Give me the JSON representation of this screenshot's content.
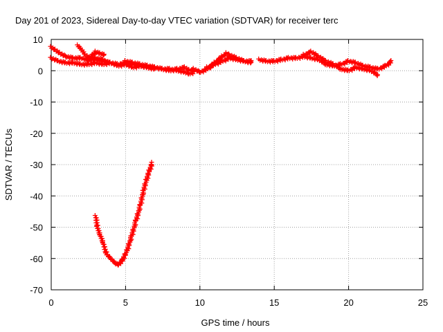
{
  "chart_data": {
    "type": "scatter",
    "title": "Day 201 of 2023, Sidereal Day-to-day VTEC variation (SDTVAR) for receiver terc",
    "xlabel": "GPS time / hours",
    "ylabel": "SDTVAR / TECUs",
    "xlim": [
      0,
      25
    ],
    "ylim": [
      -70,
      10
    ],
    "xticks": [
      0,
      5,
      10,
      15,
      20,
      25
    ],
    "yticks": [
      10,
      0,
      -10,
      -20,
      -30,
      -40,
      -50,
      -60,
      -70
    ],
    "grid": true,
    "marker": "+",
    "colors": {
      "series": "#ff0000",
      "grid": "#a0a0a0",
      "axis": "#000000"
    },
    "series": [
      {
        "name": "SDTVAR",
        "segments": [
          {
            "x": [
              0.0,
              0.3,
              0.6,
              1.0,
              1.5,
              2.0,
              2.5,
              3.0,
              3.5,
              3.8
            ],
            "y": [
              7.5,
              6.5,
              5.5,
              4.5,
              4.0,
              4.0,
              3.5,
              4.0,
              3.5,
              2.5
            ]
          },
          {
            "x": [
              0.0,
              0.5,
              1.0,
              1.5,
              2.0,
              2.5,
              3.0,
              3.5,
              4.0,
              4.5,
              5.0,
              5.5,
              6.0,
              6.5,
              7.0
            ],
            "y": [
              4.0,
              3.0,
              2.5,
              2.5,
              2.0,
              2.0,
              2.5,
              2.0,
              2.5,
              1.5,
              2.0,
              1.0,
              1.5,
              1.0,
              0.5
            ]
          },
          {
            "x": [
              1.8,
              2.0,
              2.3,
              2.6,
              3.0,
              3.5,
              4.0,
              4.5,
              5.0,
              5.5,
              6.0,
              6.5,
              7.0
            ],
            "y": [
              8.0,
              7.0,
              5.0,
              4.0,
              3.5,
              3.0,
              2.5,
              2.0,
              2.5,
              2.0,
              1.5,
              1.0,
              0.5
            ]
          },
          {
            "x": [
              2.5,
              2.8,
              3.0,
              3.3,
              3.6
            ],
            "y": [
              3.0,
              5.0,
              6.0,
              5.5,
              5.0
            ]
          },
          {
            "x": [
              5.0,
              5.5,
              6.0,
              6.5,
              7.0,
              7.5,
              8.0,
              8.5,
              9.0,
              9.3,
              9.6,
              10.0
            ],
            "y": [
              3.0,
              2.5,
              2.0,
              1.5,
              1.0,
              0.5,
              0.0,
              0.5,
              1.0,
              0.0,
              0.5,
              -0.5
            ]
          },
          {
            "x": [
              6.5,
              7.0,
              7.5,
              8.0,
              8.5,
              9.0,
              9.3,
              9.6
            ],
            "y": [
              1.5,
              1.0,
              0.5,
              0.5,
              0.0,
              -0.5,
              -1.0,
              -0.5
            ]
          },
          {
            "x": [
              10.0,
              10.5,
              11.0,
              11.5,
              11.8,
              12.0,
              12.5,
              13.0,
              13.5
            ],
            "y": [
              -0.5,
              0.5,
              2.5,
              4.5,
              5.5,
              5.0,
              4.0,
              3.0,
              3.0
            ]
          },
          {
            "x": [
              10.5,
              11.0,
              11.5,
              12.0,
              12.5,
              13.0,
              13.5
            ],
            "y": [
              1.0,
              2.0,
              3.0,
              4.0,
              3.5,
              3.0,
              2.5
            ]
          },
          {
            "x": [
              14.0,
              14.5,
              15.0,
              15.5,
              16.0,
              16.5,
              17.0,
              17.5,
              18.0,
              18.5,
              19.0,
              19.5,
              20.0,
              20.5,
              21.0,
              21.5,
              22.0,
              22.5,
              22.9
            ],
            "y": [
              3.5,
              3.0,
              3.0,
              3.5,
              4.0,
              4.0,
              4.5,
              4.0,
              3.5,
              2.0,
              1.5,
              2.0,
              3.0,
              2.5,
              1.5,
              1.0,
              0.5,
              1.5,
              3.0
            ]
          },
          {
            "x": [
              17.0,
              17.5,
              18.0,
              18.5,
              19.0,
              19.5,
              20.0,
              20.5,
              21.0,
              21.5,
              22.0
            ],
            "y": [
              5.0,
              6.0,
              4.5,
              3.0,
              2.0,
              0.5,
              0.0,
              1.0,
              0.5,
              0.0,
              -1.5
            ]
          },
          {
            "x": [
              3.0,
              3.1,
              3.3,
              3.5,
              3.7,
              4.0,
              4.3,
              4.5,
              4.8,
              5.1,
              5.4,
              5.7,
              6.0,
              6.2,
              6.4,
              6.6,
              6.8
            ],
            "y": [
              -46.5,
              -50.0,
              -52.5,
              -55.0,
              -58.5,
              -60.0,
              -61.5,
              -62.0,
              -60.5,
              -57.5,
              -53.0,
              -48.0,
              -43.0,
              -38.5,
              -35.0,
              -32.0,
              -29.5
            ]
          }
        ]
      }
    ]
  }
}
